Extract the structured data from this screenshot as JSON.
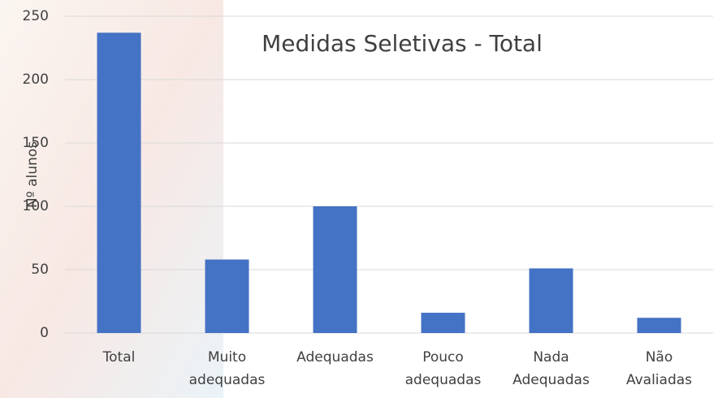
{
  "chart_data": {
    "type": "bar",
    "title": "Medidas Seletivas - Total",
    "y_label": "Nº alunos",
    "categories": [
      "Total",
      "Muito adequadas",
      "Adequadas",
      "Pouco adequadas",
      "Nada Adequadas",
      "Não Avaliadas"
    ],
    "values": [
      237,
      58,
      100,
      16,
      51,
      12
    ],
    "color": "#4472c4",
    "ylim": [
      0,
      250
    ],
    "yticks": [
      0,
      50,
      100,
      150,
      200,
      250
    ],
    "grid": true
  }
}
